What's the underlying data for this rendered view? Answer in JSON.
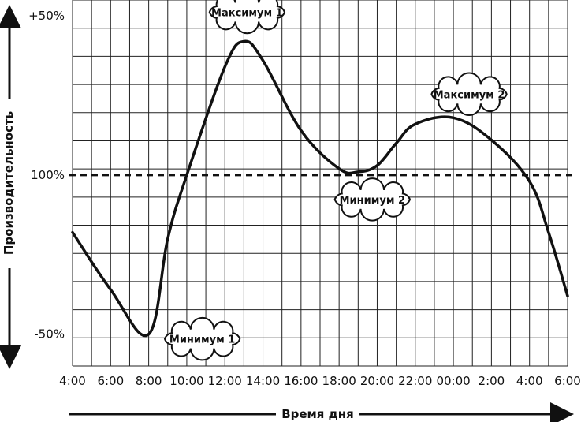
{
  "chart_data": {
    "type": "line",
    "xlabel": "Время дня",
    "ylabel": "Производительность",
    "x_ticks": [
      "4:00",
      "6:00",
      "8:00",
      "10:00",
      "12:00",
      "14:00",
      "16:00",
      "18:00",
      "20:00",
      "22:00",
      "00:00",
      "2:00",
      "4:00",
      "6:00"
    ],
    "y_ticks": [
      "+50%",
      "100%",
      "-50%"
    ],
    "y_tick_values": [
      50,
      0,
      -50
    ],
    "ylim": [
      -60,
      55
    ],
    "reference_line": {
      "value": 0,
      "label": "100%",
      "style": "dashed"
    },
    "grid": true,
    "series": [
      {
        "x": [
          0,
          2,
          4,
          5,
          6,
          8,
          9,
          10,
          12,
          14,
          15,
          16,
          17,
          18,
          20,
          22,
          24,
          25,
          26
        ],
        "y": [
          -18,
          -36,
          -50,
          -20,
          0,
          34,
          42,
          36,
          14,
          2,
          1,
          3,
          10,
          16,
          18,
          11,
          -2,
          -18,
          -38
        ]
      }
    ],
    "annotations": [
      {
        "label": "Минимум 1",
        "x": 4,
        "y": -50
      },
      {
        "label": "Максимум 1",
        "x": 9,
        "y": 42
      },
      {
        "label": "Минимум 2",
        "x": 15,
        "y": 1
      },
      {
        "label": "Максимум 2",
        "x": 20,
        "y": 18
      }
    ]
  }
}
